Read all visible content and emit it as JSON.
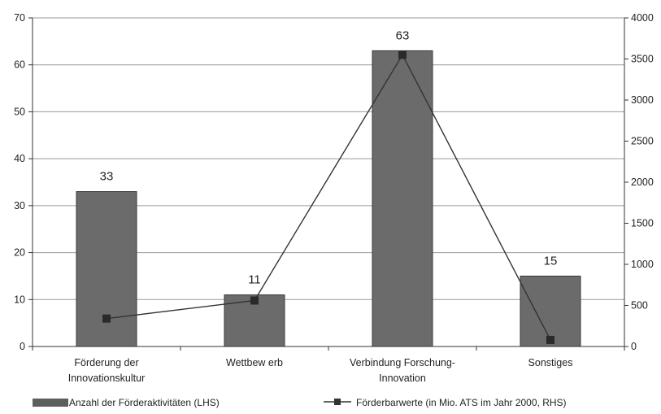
{
  "chart_data": {
    "type": "bar",
    "categories": [
      [
        "Förderung der",
        "Innovationskultur"
      ],
      [
        "Wettbew erb"
      ],
      [
        "Verbindung Forschung-",
        "Innovation"
      ],
      [
        "Sonstiges"
      ]
    ],
    "series": [
      {
        "name": "Anzahl der Förderaktivitäten (LHS)",
        "type": "bar",
        "axis": "left",
        "values": [
          33,
          11,
          63,
          15
        ],
        "color": "#6b6b6b"
      },
      {
        "name": "Förderbarwerte (in Mio. ATS im Jahr 2000, RHS)",
        "type": "line",
        "axis": "right",
        "values": [
          340,
          560,
          3550,
          80
        ],
        "color": "#333333"
      }
    ],
    "data_labels": [
      "33",
      "11",
      "63",
      "15"
    ],
    "y_left": {
      "min": 0,
      "max": 70,
      "ticks": [
        "0",
        "10",
        "20",
        "30",
        "40",
        "50",
        "60",
        "70"
      ]
    },
    "y_right": {
      "min": 0,
      "max": 4000,
      "ticks": [
        "0",
        "500",
        "1000",
        "1500",
        "2000",
        "2500",
        "3000",
        "3500",
        "4000"
      ]
    },
    "grid": true,
    "legend_position": "bottom"
  }
}
